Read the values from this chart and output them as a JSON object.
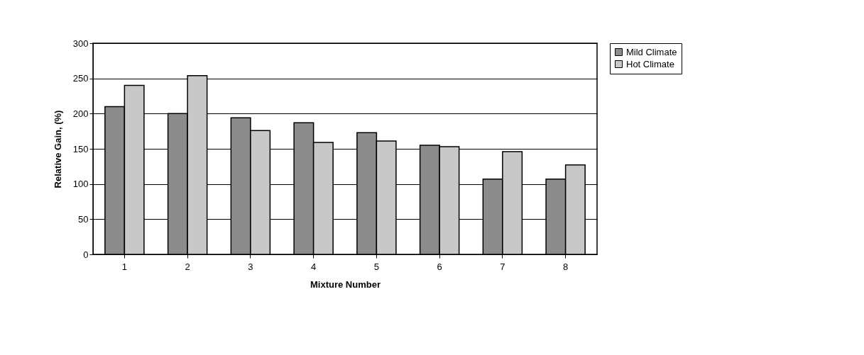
{
  "chart_data": {
    "type": "bar",
    "xlabel": "Mixture Number",
    "ylabel": "Relative Gain, (%)",
    "categories": [
      "1",
      "2",
      "3",
      "4",
      "5",
      "6",
      "7",
      "8"
    ],
    "series": [
      {
        "name": "Mild Climate",
        "color": "#8c8c8c",
        "values": [
          210,
          200,
          194,
          187,
          173,
          155,
          107,
          107
        ]
      },
      {
        "name": "Hot Climate",
        "color": "#c8c8c8",
        "values": [
          240,
          254,
          176,
          159,
          161,
          153,
          146,
          127
        ]
      }
    ],
    "ylim": [
      0,
      300
    ],
    "yticks": [
      0,
      50,
      100,
      150,
      200,
      250,
      300
    ],
    "grid": "y",
    "legend": "right"
  }
}
